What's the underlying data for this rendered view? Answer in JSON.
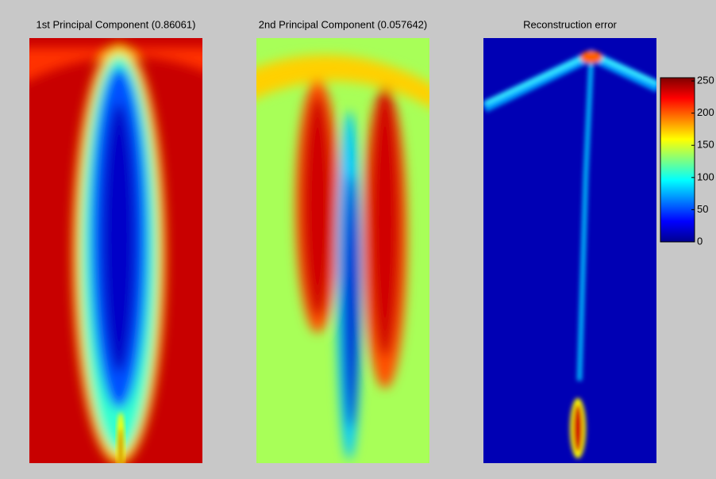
{
  "chart_data": {
    "type": "image",
    "panels": [
      {
        "title": "1st Principal Component (0.86061)"
      },
      {
        "title": "2nd Principal Component (0.057642)"
      },
      {
        "title": "Reconstruction error"
      }
    ],
    "colorbar": {
      "ylim": [
        0,
        255
      ],
      "yticks": [
        0,
        50,
        100,
        150,
        200,
        250
      ],
      "colormap": "jet"
    }
  }
}
